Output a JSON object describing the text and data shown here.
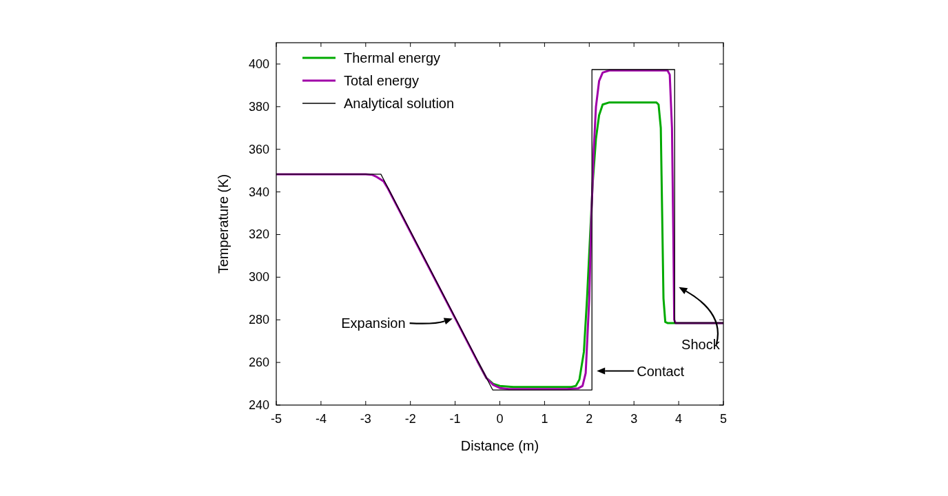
{
  "chart_data": {
    "type": "line",
    "xlabel": "Distance (m)",
    "ylabel": "Temperature (K)",
    "xlim": [
      -5,
      5
    ],
    "xticks": [
      -5,
      -4,
      -3,
      -2,
      -1,
      0,
      1,
      2,
      3,
      4,
      5
    ],
    "ylim": [
      240,
      410
    ],
    "yticks": [
      240,
      260,
      280,
      300,
      320,
      340,
      360,
      380,
      400
    ],
    "legend": "top left",
    "grid": false,
    "marker": "none",
    "line_style": "solid",
    "series": [
      {
        "name": "Thermal energy",
        "color": "#00aa00",
        "x": [
          -0.5,
          -0.3,
          -0.15,
          0,
          0.3,
          1.6,
          1.7,
          1.78,
          1.88,
          1.95,
          2.02,
          2.08,
          2.15,
          2.22,
          2.3,
          2.45,
          3.5,
          3.55,
          3.6,
          3.63,
          3.66,
          3.7,
          3.75,
          5
        ],
        "values": [
          260.5,
          252.7,
          250,
          249,
          248.5,
          248.5,
          249,
          252,
          265,
          290,
          320,
          345,
          365,
          376,
          381,
          382,
          382,
          381,
          370,
          330,
          290,
          279,
          278.5,
          278.5
        ]
      },
      {
        "name": "Total energy",
        "color": "#a000a8",
        "x": [
          -5,
          -3,
          -2.85,
          -2.75,
          -2.6,
          -2.5,
          -2,
          -1.5,
          -1,
          -0.5,
          -0.3,
          -0.15,
          0,
          0.2,
          1.5,
          1.75,
          1.85,
          1.92,
          2,
          2.05,
          2.1,
          2.15,
          2.22,
          2.3,
          2.45,
          3.75,
          3.8,
          3.85,
          3.88,
          3.9,
          3.93,
          5
        ],
        "values": [
          348.3,
          348.3,
          348,
          347,
          345,
          341.5,
          321.2,
          301,
          280.8,
          260.5,
          252.7,
          249.5,
          248,
          247.5,
          247.5,
          247.8,
          249,
          255,
          290,
          330,
          360,
          380,
          392,
          396,
          397,
          397,
          395,
          370,
          320,
          280,
          278.5,
          278.5
        ]
      },
      {
        "name": "Analytical solution",
        "color": "#000000",
        "x": [
          -5,
          -2.66,
          -0.16,
          2.06,
          2.06,
          3.91,
          3.91,
          5
        ],
        "values": [
          348.3,
          348.3,
          247.1,
          247.1,
          397.4,
          397.4,
          278.5,
          278.5
        ]
      }
    ],
    "annotations": [
      "Expansion",
      "Contact",
      "Shock"
    ]
  }
}
